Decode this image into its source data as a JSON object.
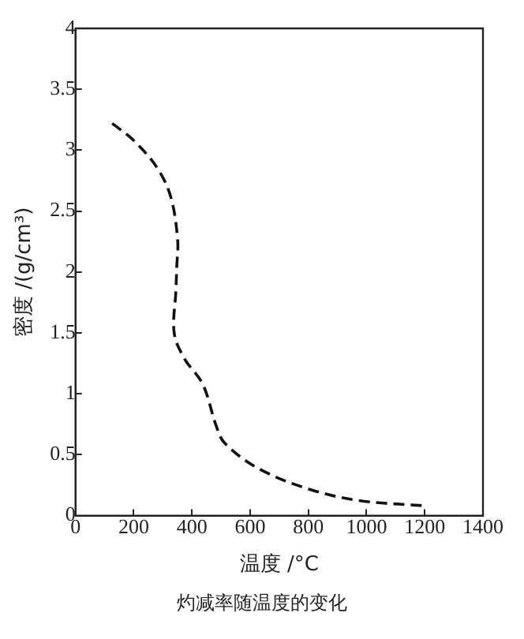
{
  "chart_data": {
    "type": "line",
    "xlabel": "温度 /°C",
    "ylabel": "密度 /(g/cm³)",
    "annotations": [
      "灼减率随温度的变化"
    ],
    "x": [
      126,
      200,
      282,
      328,
      351,
      348,
      345,
      339,
      374,
      437,
      483,
      511,
      626,
      799,
      971,
      1201
    ],
    "series": [
      {
        "color": "#111111",
        "values": [
          3.22,
          3.08,
          2.85,
          2.61,
          2.26,
          2.05,
          1.85,
          1.5,
          1.29,
          1.08,
          0.74,
          0.6,
          0.39,
          0.22,
          0.125,
          0.08
        ]
      }
    ],
    "xlim": [
      0,
      1400
    ],
    "xticks": [
      0,
      200,
      400,
      600,
      800,
      1000,
      1200,
      1400
    ],
    "ylim": [
      0,
      4
    ],
    "yticks": [
      0,
      0.5,
      1,
      1.5,
      2,
      2.5,
      3,
      3.5,
      4
    ],
    "grid": false,
    "legend": false,
    "marker": "none",
    "line_style": "dashed"
  }
}
